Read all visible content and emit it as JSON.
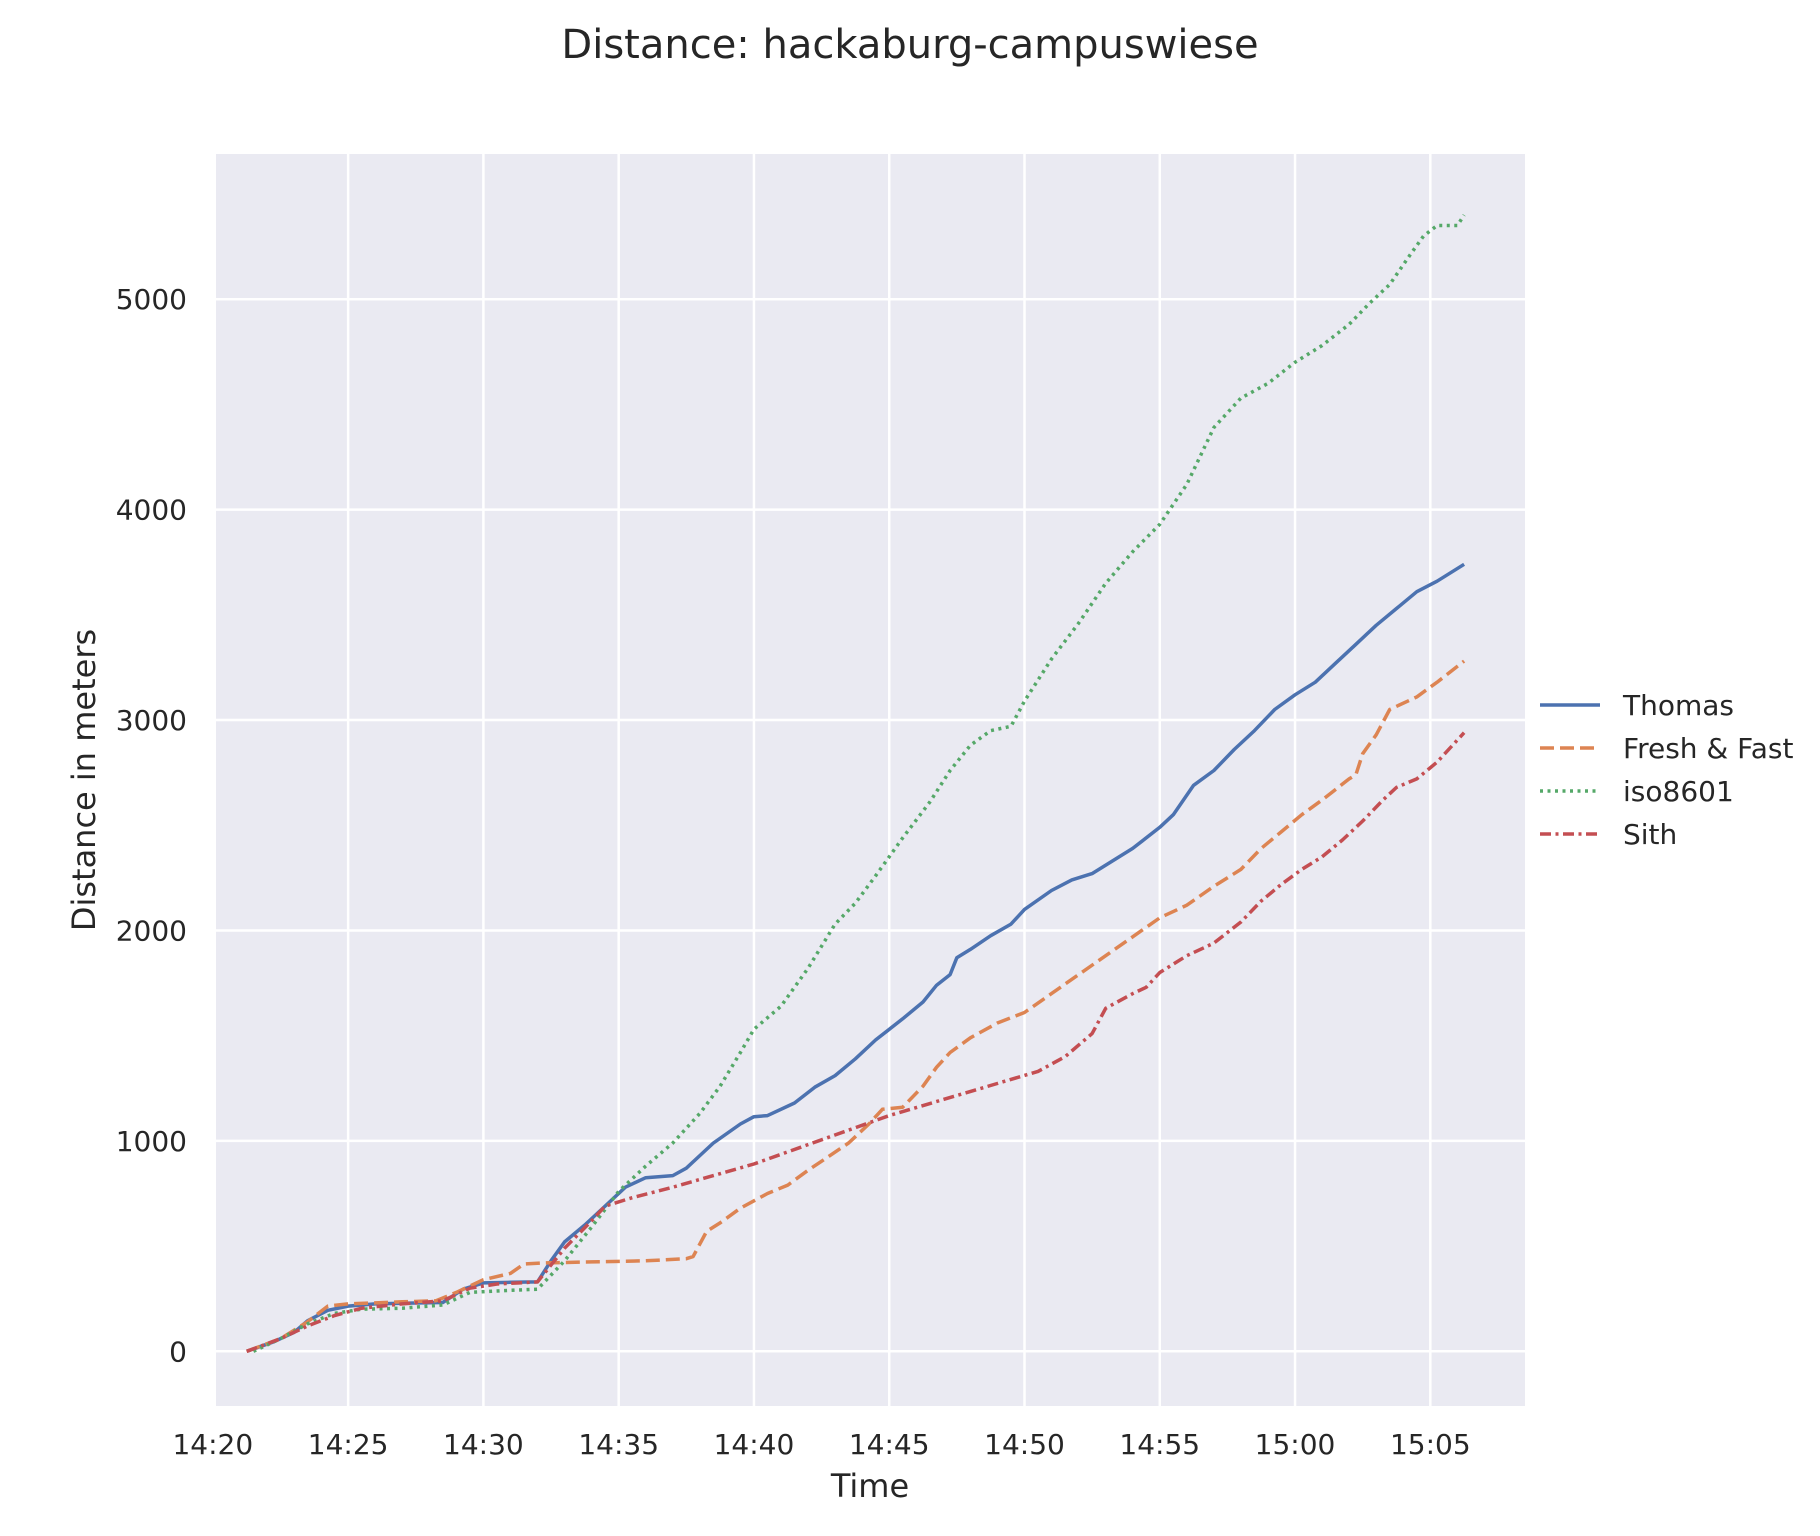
{
  "chart_data": {
    "type": "line",
    "title": "Distance: hackaburg-campuswiese",
    "xlabel": "Time",
    "ylabel": "Distance in meters",
    "x_axis_format": "HH:MM",
    "xlim": [
      "14:20:07",
      "15:08:30"
    ],
    "ylim": [
      -260,
      5690
    ],
    "x_ticks": [
      "14:20",
      "14:25",
      "14:30",
      "14:35",
      "14:40",
      "14:45",
      "14:50",
      "14:55",
      "15:00",
      "15:05"
    ],
    "y_ticks": [
      0,
      1000,
      2000,
      3000,
      4000,
      5000
    ],
    "grid": true,
    "background": "#eaeaf2",
    "legend_position": "right",
    "series": [
      {
        "name": "Thomas",
        "color": "#4c72b0",
        "style": "solid",
        "points": [
          [
            "14:21:15",
            0
          ],
          [
            "14:22:15",
            45
          ],
          [
            "14:23:00",
            90
          ],
          [
            "14:23:30",
            145
          ],
          [
            "14:24:15",
            195
          ],
          [
            "14:25:00",
            215
          ],
          [
            "14:26:00",
            225
          ],
          [
            "14:27:00",
            228
          ],
          [
            "14:28:30",
            232
          ],
          [
            "14:29:15",
            295
          ],
          [
            "14:30:00",
            325
          ],
          [
            "14:31:00",
            328
          ],
          [
            "14:32:00",
            330
          ],
          [
            "14:32:30",
            430
          ],
          [
            "14:33:00",
            520
          ],
          [
            "14:33:45",
            600
          ],
          [
            "14:34:30",
            690
          ],
          [
            "14:35:15",
            780
          ],
          [
            "14:36:00",
            825
          ],
          [
            "14:37:00",
            835
          ],
          [
            "14:37:30",
            870
          ],
          [
            "14:38:00",
            930
          ],
          [
            "14:38:30",
            990
          ],
          [
            "14:39:30",
            1080
          ],
          [
            "14:40:00",
            1115
          ],
          [
            "14:40:30",
            1120
          ],
          [
            "14:41:30",
            1180
          ],
          [
            "14:42:15",
            1255
          ],
          [
            "14:43:00",
            1310
          ],
          [
            "14:43:45",
            1390
          ],
          [
            "14:44:30",
            1480
          ],
          [
            "14:45:30",
            1580
          ],
          [
            "14:46:15",
            1660
          ],
          [
            "14:46:45",
            1740
          ],
          [
            "14:47:15",
            1790
          ],
          [
            "14:47:30",
            1870
          ],
          [
            "14:48:00",
            1910
          ],
          [
            "14:48:45",
            1975
          ],
          [
            "14:49:30",
            2030
          ],
          [
            "14:50:00",
            2100
          ],
          [
            "14:51:00",
            2190
          ],
          [
            "14:51:45",
            2240
          ],
          [
            "14:52:30",
            2270
          ],
          [
            "14:53:15",
            2330
          ],
          [
            "14:54:00",
            2390
          ],
          [
            "14:55:00",
            2490
          ],
          [
            "14:55:30",
            2550
          ],
          [
            "14:56:15",
            2690
          ],
          [
            "14:57:00",
            2760
          ],
          [
            "14:57:45",
            2860
          ],
          [
            "14:58:30",
            2950
          ],
          [
            "14:59:15",
            3050
          ],
          [
            "15:00:00",
            3120
          ],
          [
            "15:00:45",
            3180
          ],
          [
            "15:01:30",
            3270
          ],
          [
            "15:02:15",
            3360
          ],
          [
            "15:03:00",
            3450
          ],
          [
            "15:03:45",
            3530
          ],
          [
            "15:04:30",
            3610
          ],
          [
            "15:05:15",
            3660
          ],
          [
            "15:06:15",
            3740
          ]
        ]
      },
      {
        "name": "Fresh & Fast",
        "color": "#dd8452",
        "style": "dashed",
        "points": [
          [
            "14:21:15",
            0
          ],
          [
            "14:22:30",
            60
          ],
          [
            "14:23:30",
            140
          ],
          [
            "14:24:15",
            215
          ],
          [
            "14:25:00",
            225
          ],
          [
            "14:26:00",
            230
          ],
          [
            "14:27:00",
            235
          ],
          [
            "14:28:15",
            240
          ],
          [
            "14:29:00",
            280
          ],
          [
            "14:30:00",
            340
          ],
          [
            "14:31:00",
            370
          ],
          [
            "14:31:30",
            415
          ],
          [
            "14:32:15",
            420
          ],
          [
            "14:34:00",
            425
          ],
          [
            "14:36:00",
            430
          ],
          [
            "14:37:30",
            440
          ],
          [
            "14:37:45",
            450
          ],
          [
            "14:38:15",
            570
          ],
          [
            "14:38:45",
            610
          ],
          [
            "14:39:30",
            680
          ],
          [
            "14:40:30",
            750
          ],
          [
            "14:41:15",
            790
          ],
          [
            "14:42:00",
            860
          ],
          [
            "14:42:45",
            925
          ],
          [
            "14:43:30",
            990
          ],
          [
            "14:44:15",
            1080
          ],
          [
            "14:44:45",
            1150
          ],
          [
            "14:45:30",
            1160
          ],
          [
            "14:46:15",
            1260
          ],
          [
            "14:46:45",
            1350
          ],
          [
            "14:47:15",
            1420
          ],
          [
            "14:48:00",
            1490
          ],
          [
            "14:49:00",
            1560
          ],
          [
            "14:50:00",
            1610
          ],
          [
            "14:51:00",
            1700
          ],
          [
            "14:52:00",
            1790
          ],
          [
            "14:53:00",
            1880
          ],
          [
            "14:54:00",
            1970
          ],
          [
            "14:55:00",
            2060
          ],
          [
            "14:56:00",
            2120
          ],
          [
            "14:57:00",
            2210
          ],
          [
            "14:58:00",
            2290
          ],
          [
            "14:58:45",
            2390
          ],
          [
            "14:59:30",
            2470
          ],
          [
            "15:00:15",
            2550
          ],
          [
            "15:01:00",
            2620
          ],
          [
            "15:02:00",
            2720
          ],
          [
            "15:02:15",
            2740
          ],
          [
            "15:02:30",
            2840
          ],
          [
            "15:03:00",
            2930
          ],
          [
            "15:03:30",
            3050
          ],
          [
            "15:04:30",
            3110
          ],
          [
            "15:05:15",
            3180
          ],
          [
            "15:06:15",
            3280
          ]
        ]
      },
      {
        "name": "iso8601",
        "color": "#55a868",
        "style": "dotted",
        "points": [
          [
            "14:21:30",
            0
          ],
          [
            "14:22:30",
            60
          ],
          [
            "14:23:30",
            130
          ],
          [
            "14:24:30",
            180
          ],
          [
            "14:25:30",
            200
          ],
          [
            "14:27:00",
            205
          ],
          [
            "14:28:30",
            220
          ],
          [
            "14:29:30",
            280
          ],
          [
            "14:31:00",
            290
          ],
          [
            "14:32:00",
            295
          ],
          [
            "14:33:00",
            430
          ],
          [
            "14:34:00",
            590
          ],
          [
            "14:35:00",
            760
          ],
          [
            "14:36:00",
            880
          ],
          [
            "14:37:00",
            990
          ],
          [
            "14:38:00",
            1130
          ],
          [
            "14:38:45",
            1260
          ],
          [
            "14:39:30",
            1420
          ],
          [
            "14:40:00",
            1530
          ],
          [
            "14:41:00",
            1640
          ],
          [
            "14:42:00",
            1820
          ],
          [
            "14:43:00",
            2030
          ],
          [
            "14:43:45",
            2130
          ],
          [
            "14:44:30",
            2260
          ],
          [
            "14:45:30",
            2440
          ],
          [
            "14:46:30",
            2610
          ],
          [
            "14:47:15",
            2760
          ],
          [
            "14:48:00",
            2880
          ],
          [
            "14:48:45",
            2950
          ],
          [
            "14:49:30",
            2970
          ],
          [
            "14:50:00",
            3090
          ],
          [
            "14:51:00",
            3290
          ],
          [
            "14:52:00",
            3460
          ],
          [
            "14:53:00",
            3650
          ],
          [
            "14:54:00",
            3800
          ],
          [
            "14:55:00",
            3930
          ],
          [
            "14:56:00",
            4120
          ],
          [
            "14:57:00",
            4390
          ],
          [
            "14:58:00",
            4530
          ],
          [
            "14:59:00",
            4600
          ],
          [
            "15:00:00",
            4700
          ],
          [
            "15:01:00",
            4780
          ],
          [
            "15:02:00",
            4880
          ],
          [
            "15:02:45",
            4980
          ],
          [
            "15:03:30",
            5070
          ],
          [
            "15:04:15",
            5210
          ],
          [
            "15:04:45",
            5300
          ],
          [
            "15:05:15",
            5350
          ],
          [
            "15:06:00",
            5350
          ],
          [
            "15:06:15",
            5400
          ]
        ]
      },
      {
        "name": "Sith",
        "color": "#c44e52",
        "style": "dashdot",
        "points": [
          [
            "14:21:15",
            0
          ],
          [
            "14:22:30",
            60
          ],
          [
            "14:23:30",
            120
          ],
          [
            "14:24:30",
            170
          ],
          [
            "14:25:30",
            205
          ],
          [
            "14:27:00",
            225
          ],
          [
            "14:28:30",
            240
          ],
          [
            "14:29:30",
            300
          ],
          [
            "14:30:30",
            320
          ],
          [
            "14:32:00",
            330
          ],
          [
            "14:33:00",
            490
          ],
          [
            "14:34:00",
            620
          ],
          [
            "14:34:30",
            690
          ],
          [
            "14:35:30",
            730
          ],
          [
            "14:37:00",
            780
          ],
          [
            "14:40:00",
            890
          ],
          [
            "14:45:00",
            1120
          ],
          [
            "14:50:30",
            1330
          ],
          [
            "14:51:30",
            1400
          ],
          [
            "14:52:30",
            1510
          ],
          [
            "14:53:00",
            1630
          ],
          [
            "14:54:00",
            1700
          ],
          [
            "14:54:30",
            1730
          ],
          [
            "14:55:00",
            1800
          ],
          [
            "14:56:00",
            1880
          ],
          [
            "14:57:00",
            1940
          ],
          [
            "14:58:00",
            2040
          ],
          [
            "14:58:45",
            2140
          ],
          [
            "14:59:30",
            2220
          ],
          [
            "15:00:15",
            2290
          ],
          [
            "15:01:00",
            2350
          ],
          [
            "15:01:45",
            2430
          ],
          [
            "15:02:30",
            2520
          ],
          [
            "15:03:15",
            2620
          ],
          [
            "15:03:45",
            2680
          ],
          [
            "15:04:30",
            2720
          ],
          [
            "15:05:15",
            2800
          ],
          [
            "15:06:15",
            2940
          ]
        ]
      }
    ]
  }
}
